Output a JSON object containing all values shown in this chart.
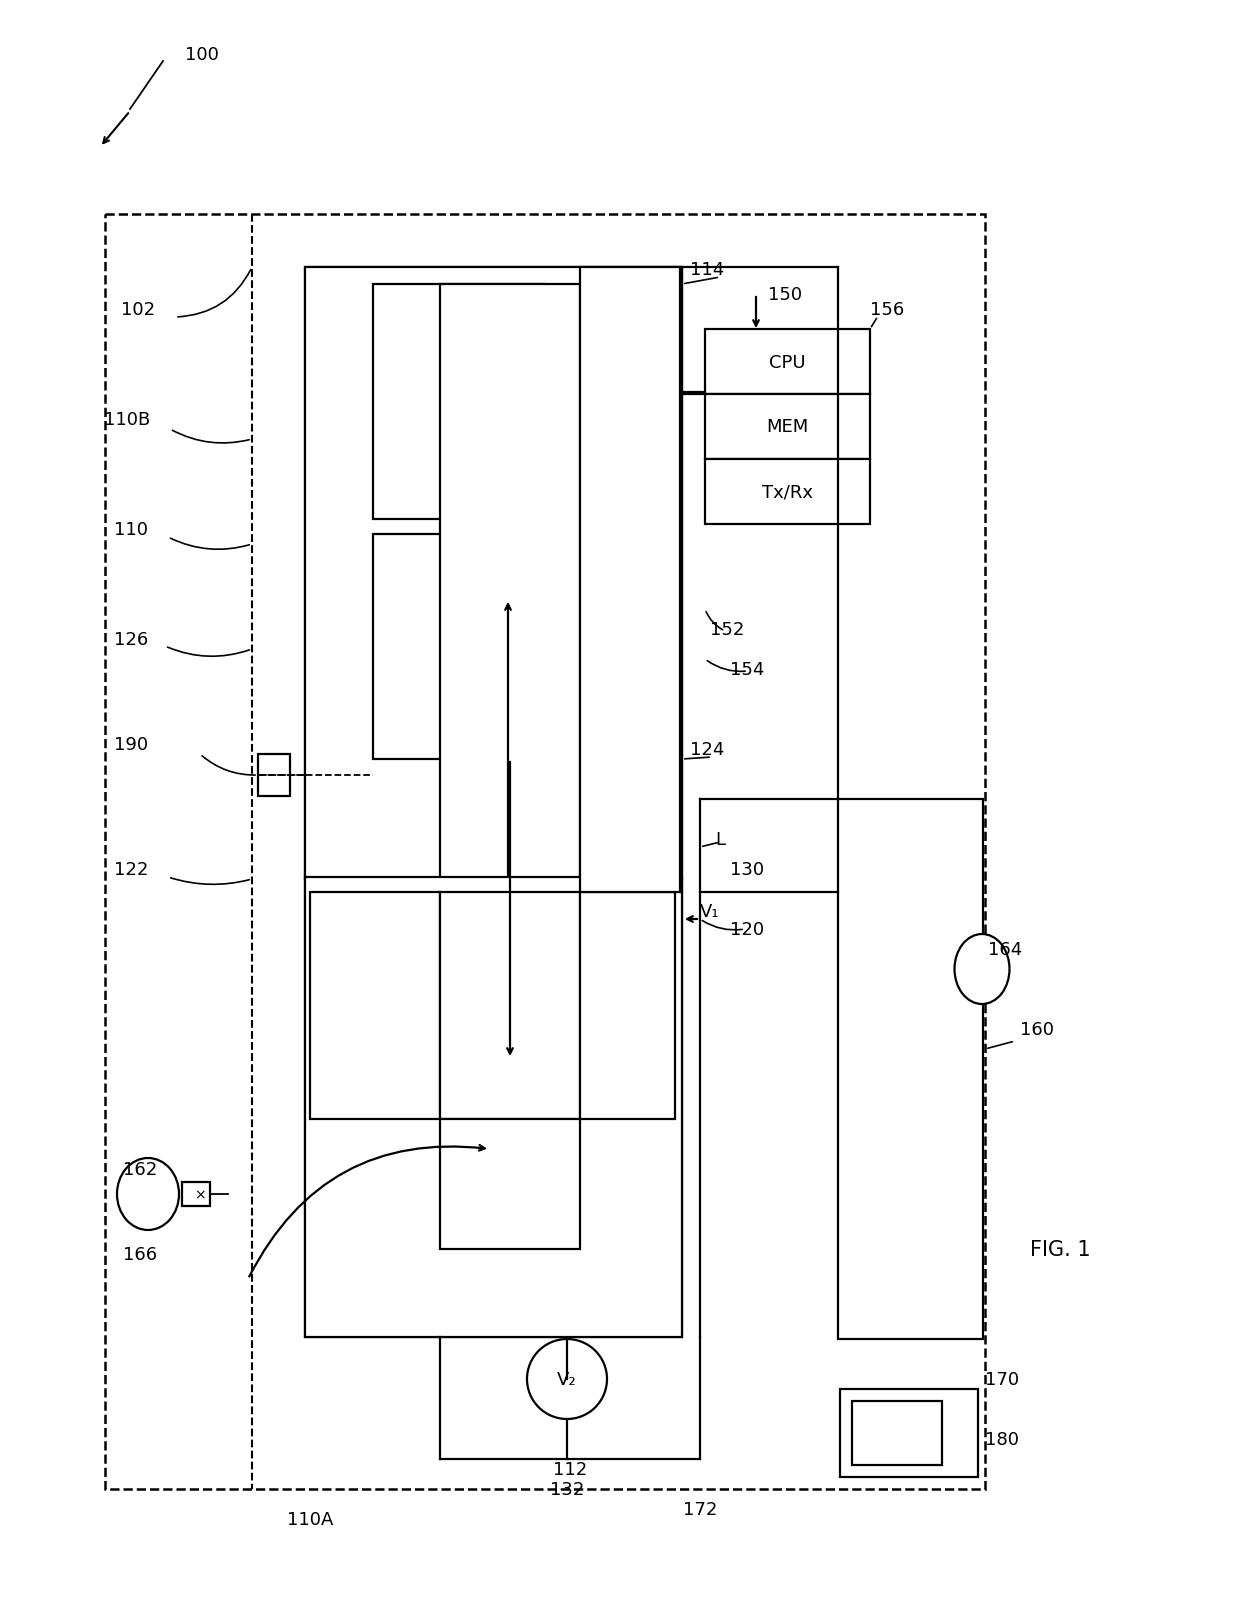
{
  "fig_label": "FIG. 1",
  "ref_100": "100",
  "ref_102": "102",
  "ref_110A": "110A",
  "ref_110B": "110B",
  "ref_110": "110",
  "ref_112": "112",
  "ref_114": "114",
  "ref_120": "120",
  "ref_122": "122",
  "ref_124": "124",
  "ref_126": "126",
  "ref_130": "130",
  "ref_132": "132",
  "ref_150": "150",
  "ref_152": "152",
  "ref_154": "154",
  "ref_156": "156",
  "ref_160": "160",
  "ref_162": "162",
  "ref_164": "164",
  "ref_166": "166",
  "ref_170": "170",
  "ref_172": "172",
  "ref_180": "180",
  "ref_190": "190",
  "cpu_label": "CPU",
  "mem_label": "MEM",
  "txrx_label": "Tx/Rx",
  "v1_label": "V₁",
  "v2_label": "V₂",
  "L_label": "L",
  "bg_color": "#ffffff"
}
